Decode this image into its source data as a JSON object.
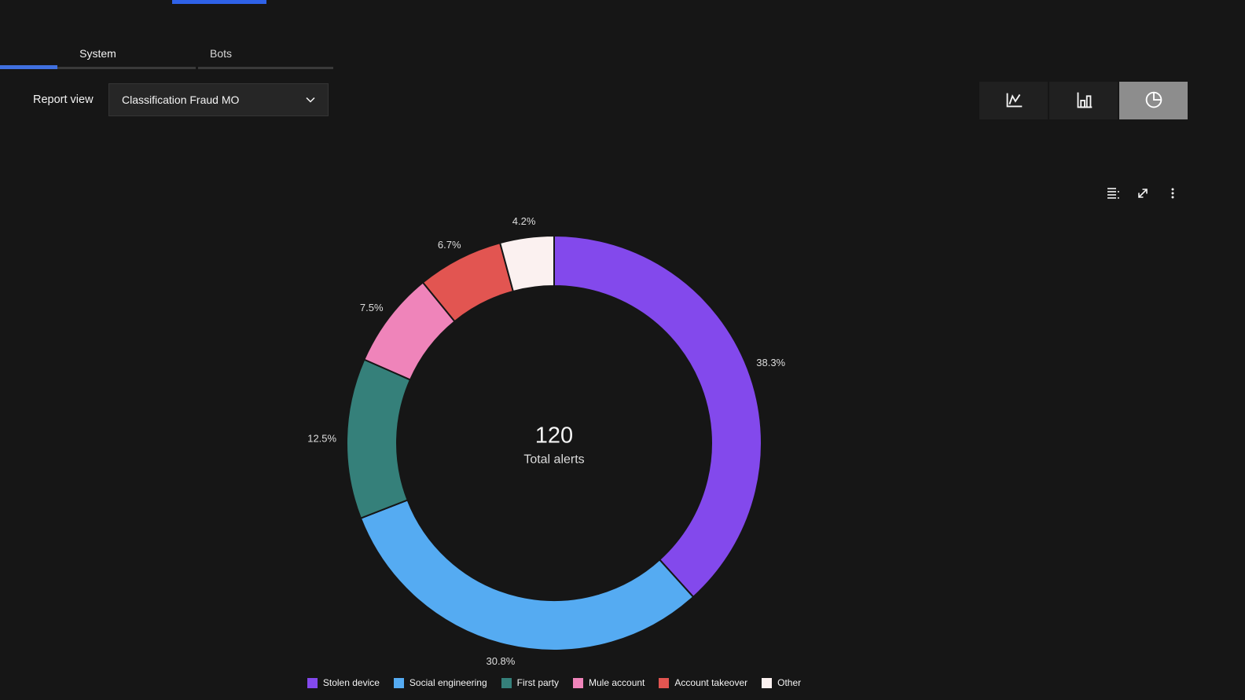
{
  "page": {
    "background": "#161616"
  },
  "top_bar": {
    "active_tab_indicator_color": "#2f62e8"
  },
  "tabs": {
    "items": [
      {
        "label": "System",
        "active": true
      },
      {
        "label": "Bots",
        "active": false
      }
    ]
  },
  "report_view": {
    "label": "Report view",
    "dropdown_value": "Classification Fraud MO"
  },
  "chart_toolbar": {
    "buttons": [
      {
        "name": "line-chart",
        "selected": false
      },
      {
        "name": "bar-chart",
        "selected": false
      },
      {
        "name": "donut-chart",
        "selected": true
      }
    ]
  },
  "card_actions": {
    "items": [
      "show-data-table",
      "maximize",
      "options-menu"
    ]
  },
  "chart_data": {
    "type": "pie",
    "subtype": "donut",
    "title": "",
    "center_value": "120",
    "center_label": "Total alerts",
    "legend_position": "bottom",
    "slices": [
      {
        "label": "Stolen device",
        "pct": 38.3,
        "pct_label": "38.3%",
        "color": "#8349ec"
      },
      {
        "label": "Social engineering",
        "pct": 30.8,
        "pct_label": "30.8%",
        "color": "#55abf2"
      },
      {
        "label": "First party",
        "pct": 12.5,
        "pct_label": "12.5%",
        "color": "#35807a"
      },
      {
        "label": "Mule account",
        "pct": 7.5,
        "pct_label": "7.5%",
        "color": "#ef84ba"
      },
      {
        "label": "Account takeover",
        "pct": 6.7,
        "pct_label": "6.7%",
        "color": "#e25551"
      },
      {
        "label": "Other",
        "pct": 4.2,
        "pct_label": "4.2%",
        "color": "#fbf1f0"
      }
    ]
  }
}
